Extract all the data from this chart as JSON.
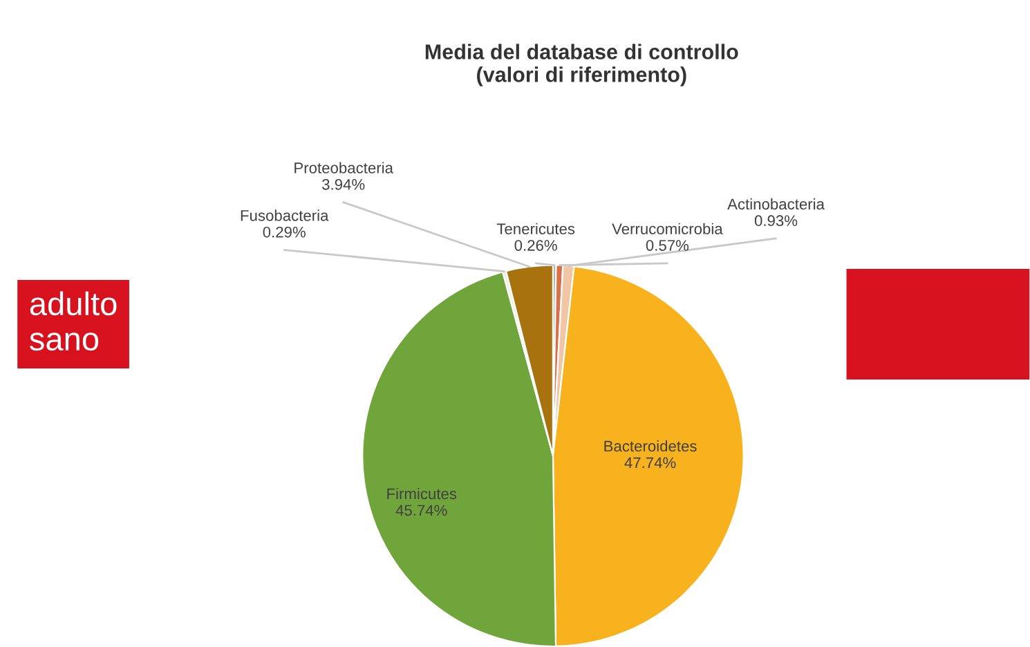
{
  "chart_data": {
    "type": "pie",
    "title": "Media del database di controllo\n(valori di riferimento)",
    "categories": [
      "Tenericutes",
      "Verrucomicrobia",
      "Actinobacteria",
      "Bacteroidetes",
      "Firmicutes",
      "Fusobacteria",
      "Proteobacteria"
    ],
    "values": [
      0.26,
      0.57,
      0.93,
      47.74,
      45.74,
      0.29,
      3.94
    ],
    "value_labels": [
      "0.26%",
      "0.57%",
      "0.93%",
      "47.74%",
      "45.74%",
      "0.29%",
      "3.94%"
    ],
    "colors": [
      "#b8aca0",
      "#d9704a",
      "#f2c6a4",
      "#f7b21e",
      "#70a53c",
      "#f0eedc",
      "#a8730e"
    ],
    "annotations": [
      "adulto\nsano"
    ],
    "legend": false
  }
}
